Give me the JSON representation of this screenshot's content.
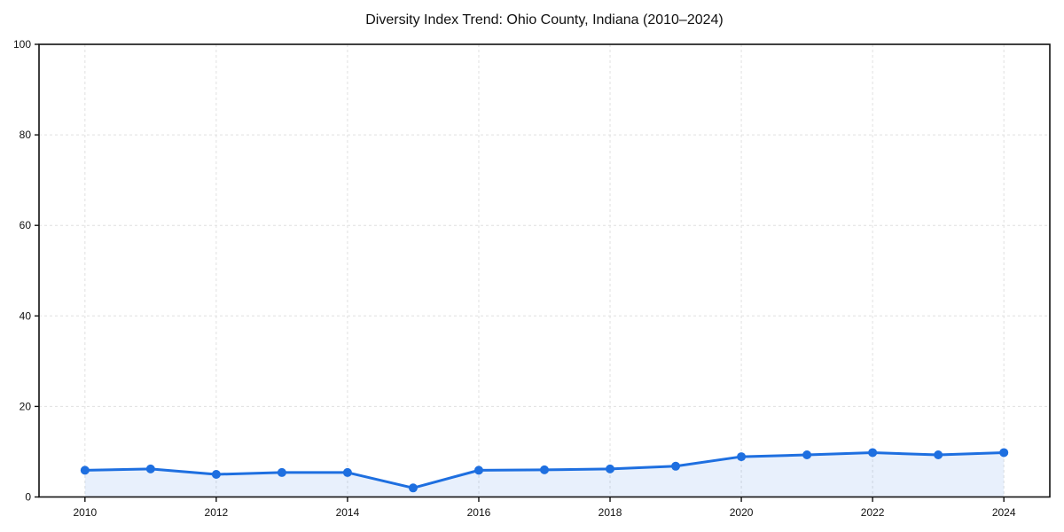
{
  "chart_data": {
    "type": "line",
    "title": "Diversity Index Trend: Ohio County, Indiana (2010–2024)",
    "x": [
      2010,
      2011,
      2012,
      2013,
      2014,
      2015,
      2016,
      2017,
      2018,
      2019,
      2020,
      2021,
      2022,
      2023,
      2024
    ],
    "values": [
      5.9,
      6.2,
      5.0,
      5.4,
      5.4,
      2.0,
      5.9,
      6.0,
      6.2,
      6.8,
      8.9,
      9.3,
      9.8,
      9.3,
      9.8
    ],
    "xlabel": "",
    "ylabel": "",
    "ylim": [
      0,
      100
    ],
    "y_ticks": [
      0,
      20,
      40,
      60,
      80,
      100
    ],
    "x_ticks": [
      2010,
      2012,
      2014,
      2016,
      2018,
      2020,
      2022,
      2024
    ],
    "grid": true,
    "legend_position": "none",
    "marker_shape": "circle",
    "colors": {
      "line": "#1e6fe0",
      "marker": "#1e6fe0",
      "fill": "rgba(30,111,224,0.10)",
      "grid": "#e0e0e0",
      "axis": "#111111",
      "text": "#111111",
      "background": "#ffffff"
    }
  }
}
